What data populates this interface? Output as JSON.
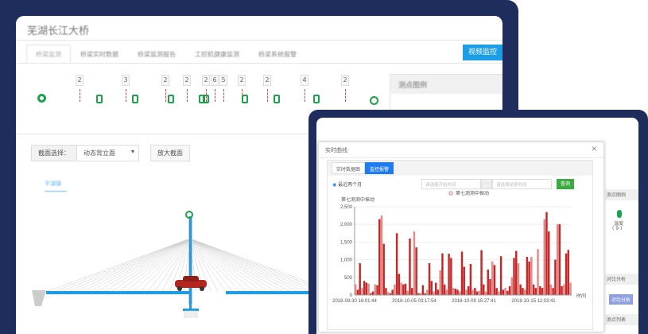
{
  "app": {
    "title": "芜湖长江大桥",
    "tabs": [
      "桥梁监测",
      "桥梁实时数据",
      "桥梁监测报告",
      "工控机健康监测",
      "桥梁系统报警"
    ],
    "video_button": "视频监控"
  },
  "sensor_counts": [
    "2",
    "3",
    "2",
    "2",
    "2",
    "6",
    "5",
    "2",
    "2",
    "4",
    "2"
  ],
  "legend": {
    "title": "测点图例"
  },
  "section": {
    "label": "截面选择：",
    "value": "动态背立面",
    "zoom_button": "放大截面",
    "direction": "平湖镇"
  },
  "colors": {
    "navy": "#1f2d5c",
    "accent": "#1b9ee6",
    "sensor": "#1aa34a",
    "series": "#c62828"
  },
  "modal": {
    "title": "实时曲线",
    "tabs": [
      "实时数据图",
      "监控报警"
    ],
    "active_tab": 1,
    "radio": "最近两个月",
    "start_placeholder": "请选择开始时间",
    "end_placeholder": "请选择结束时间",
    "separator": "-",
    "query_button": "查询"
  },
  "side": {
    "header1": "测点图例",
    "temp_label": "温度",
    "temp_count": "( 9 )",
    "compare_header": "对比分析",
    "compare_button": "对比分析",
    "list_header": "测点列表"
  },
  "chart_data": {
    "type": "bar",
    "legend": "第七测测中振动",
    "ylabel": "第七测测中振动",
    "xlabel": "时间",
    "ylim": [
      0,
      2500
    ],
    "yticks": [
      "0",
      "500",
      "1,000",
      "1,500",
      "2,000",
      "2,500"
    ],
    "xticks": [
      "2018-09-30 16:01:44",
      "2018-10-05 03:17:54",
      "2018-10-09 15:27:41",
      "2018-10-15 11:03:41"
    ],
    "values": [
      300,
      150,
      900,
      200,
      400,
      350,
      320,
      50,
      100,
      300,
      280,
      2150,
      2250,
      1450,
      200,
      80,
      50,
      150,
      300,
      1750,
      600,
      350,
      300,
      320,
      120,
      1600,
      200,
      1800,
      1350,
      50,
      60,
      280,
      50,
      150,
      900,
      400,
      100,
      350,
      150,
      700,
      1180,
      300,
      150,
      1170,
      1050,
      200,
      180,
      150,
      100,
      1230,
      800,
      150,
      250,
      880,
      150,
      200,
      100,
      120,
      1270,
      300,
      100,
      720,
      450,
      950,
      850,
      200,
      100,
      1100,
      150,
      200,
      120,
      250,
      500,
      1050,
      1250,
      900,
      300,
      200,
      150,
      1080,
      950,
      1080,
      300,
      200,
      1300,
      250,
      200,
      2150,
      2350,
      1800,
      300,
      200,
      1000,
      2000,
      2010,
      250,
      300,
      1180,
      1280,
      350
    ],
    "grid": true
  }
}
